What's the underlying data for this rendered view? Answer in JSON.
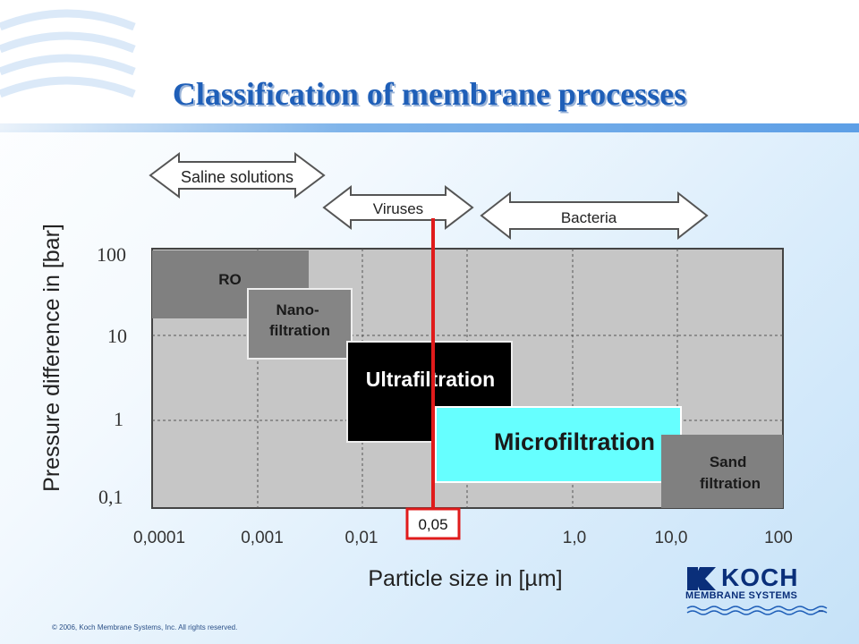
{
  "slide": {
    "title": "Classification of membrane processes",
    "copyright": "© 2006, Koch Membrane Systems, Inc. All rights reserved.",
    "logo_word": "KOCH",
    "logo_sub": "MEMBRANE SYSTEMS",
    "logo_tm": "™"
  },
  "chart_data": {
    "type": "table",
    "xlabel": "Particle size in  [µm]",
    "ylabel": "Pressure difference in  [bar]",
    "x_ticks": [
      "0,0001",
      "0,001",
      "0,01",
      "1,0",
      "10,0",
      "100"
    ],
    "y_ticks": [
      "100",
      "10",
      "1",
      "0,1"
    ],
    "processes": [
      {
        "name": "RO",
        "color": "#808080",
        "text_color": "#1a1a1a"
      },
      {
        "name": "Nano-\nfiltration",
        "color": "#858585",
        "text_color": "#1a1a1a"
      },
      {
        "name": "Ultrafiltration",
        "color": "#000000",
        "text_color": "#ffffff"
      },
      {
        "name": "Microfiltration",
        "color": "#66ffff",
        "text_color": "#1a1a1a"
      },
      {
        "name": "Sand\nfiltration",
        "color": "#808080",
        "text_color": "#1a1a1a"
      }
    ],
    "particle_ranges": [
      "Saline solutions",
      "Viruses",
      "Bacteria"
    ],
    "marker": {
      "label": "0,05",
      "color": "#e01b1b"
    },
    "grid": true
  }
}
